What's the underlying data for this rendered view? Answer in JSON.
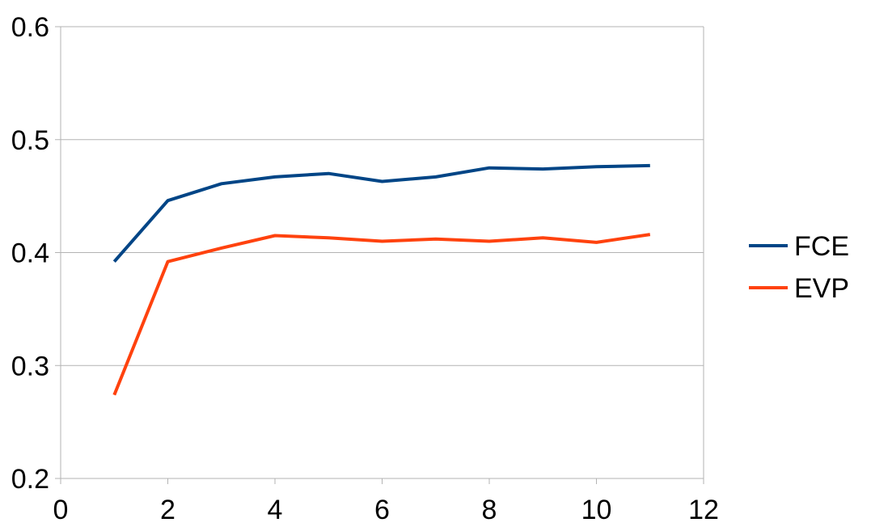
{
  "chart_data": {
    "type": "line",
    "title": "",
    "xlabel": "",
    "ylabel": "",
    "xlim": [
      0,
      12
    ],
    "ylim": [
      0.2,
      0.6
    ],
    "x_ticks": [
      0,
      2,
      4,
      6,
      8,
      10,
      12
    ],
    "x_tick_labels": [
      "0",
      "2",
      "4",
      "6",
      "8",
      "10",
      "12"
    ],
    "y_ticks": [
      0.2,
      0.3,
      0.4,
      0.5,
      0.6
    ],
    "y_tick_labels": [
      "0.2",
      "0.3",
      "0.4",
      "0.5",
      "0.6"
    ],
    "grid": "horizontal",
    "legend_position": "right",
    "x": [
      1,
      2,
      3,
      4,
      5,
      6,
      7,
      8,
      9,
      10,
      11
    ],
    "series": [
      {
        "name": "FCE",
        "color": "#004586",
        "values": [
          0.392,
          0.446,
          0.461,
          0.467,
          0.47,
          0.463,
          0.467,
          0.475,
          0.474,
          0.476,
          0.477
        ]
      },
      {
        "name": "EVP",
        "color": "#ff420e",
        "values": [
          0.274,
          0.392,
          0.404,
          0.415,
          0.413,
          0.41,
          0.412,
          0.41,
          0.413,
          0.409,
          0.416
        ]
      }
    ]
  }
}
